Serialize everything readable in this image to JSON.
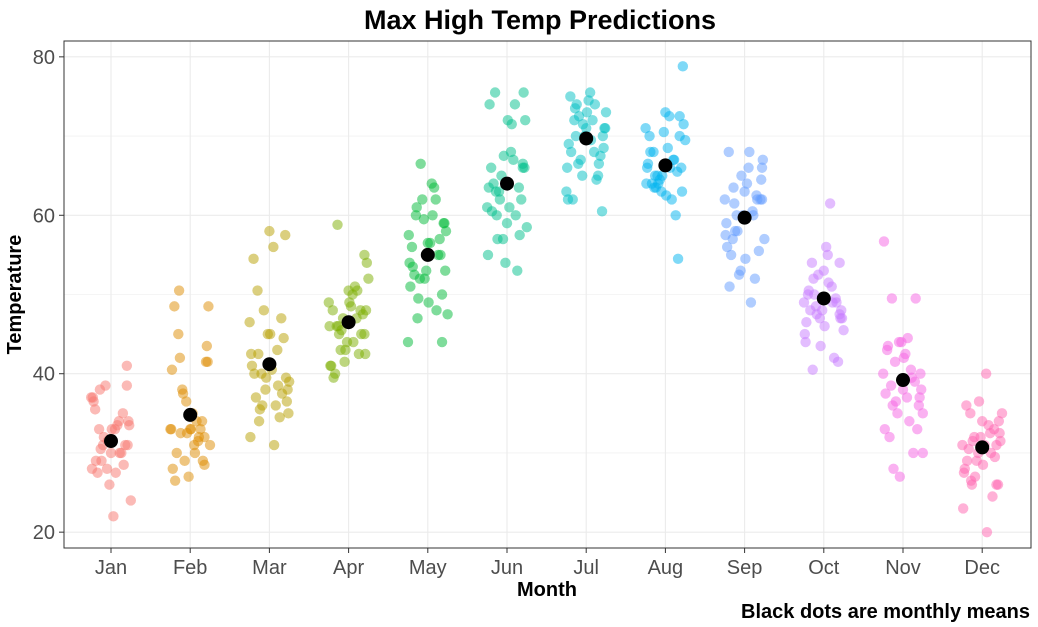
{
  "chart_data": {
    "type": "scatter",
    "title": "Max High Temp Predictions",
    "xlabel": "Month",
    "ylabel": "Temperature",
    "caption": "Black dots are monthly means",
    "categories": [
      "Jan",
      "Feb",
      "Mar",
      "Apr",
      "May",
      "Jun",
      "Jul",
      "Aug",
      "Sep",
      "Oct",
      "Nov",
      "Dec"
    ],
    "ylim": [
      18,
      82
    ],
    "yticks": [
      20,
      40,
      60,
      80
    ],
    "grid": true,
    "mean_color": "#000000",
    "point_opacity": 0.5,
    "series": [
      {
        "category": "Jan",
        "color": "#F8766D",
        "mean": 31.5,
        "offsets": [
          -0.25,
          -0.2,
          -0.15,
          -0.1,
          -0.05,
          0,
          0.05,
          0.1,
          0.15,
          0.2,
          0.25,
          -0.22,
          -0.17,
          -0.12,
          -0.07,
          -0.02,
          0.03,
          0.08,
          0.13,
          0.18,
          0.23,
          -0.24,
          -0.14,
          -0.04,
          0.06,
          0.16,
          0.22,
          -0.19,
          -0.09,
          0.01,
          0.11,
          0.21,
          -0.23,
          -0.13,
          0.2
        ],
        "values": [
          37,
          35.5,
          33,
          31,
          28,
          30,
          33,
          34,
          35,
          41,
          24,
          36.5,
          27.5,
          29,
          38.5,
          26,
          22,
          33.5,
          30,
          31,
          33.5,
          28,
          38,
          31.5,
          27.5,
          28.5,
          34,
          29,
          32,
          33,
          30,
          31,
          37,
          30.5,
          38.5
        ]
      },
      {
        "category": "Feb",
        "color": "#DE8C00",
        "mean": 34.8,
        "offsets": [
          -0.25,
          -0.2,
          -0.15,
          -0.1,
          -0.05,
          0,
          0.05,
          0.1,
          0.15,
          0.2,
          0.25,
          -0.22,
          -0.17,
          -0.12,
          -0.07,
          -0.02,
          0.03,
          0.08,
          0.13,
          0.18,
          0.23,
          -0.24,
          -0.14,
          -0.04,
          0.06,
          0.16,
          0.22,
          -0.19,
          -0.09,
          0.01,
          0.11,
          0.21,
          -0.23,
          -0.13,
          0.18
        ],
        "values": [
          33,
          48.5,
          45,
          38,
          36.5,
          33,
          31,
          31.5,
          34,
          41.5,
          31,
          28,
          30,
          32.5,
          29,
          27,
          35,
          34,
          33,
          32,
          48.5,
          33,
          50.5,
          32.5,
          30,
          29,
          41.5,
          26.5,
          37.5,
          33,
          32,
          43.5,
          40.5,
          42,
          28.5
        ]
      },
      {
        "category": "Mar",
        "color": "#B79F00",
        "mean": 41.2,
        "offsets": [
          -0.25,
          -0.2,
          -0.15,
          -0.1,
          -0.05,
          0,
          0.05,
          0.1,
          0.15,
          0.2,
          0.25,
          -0.22,
          -0.17,
          -0.12,
          -0.07,
          -0.02,
          0.03,
          0.08,
          0.13,
          0.18,
          0.23,
          -0.24,
          -0.14,
          -0.04,
          0.06,
          0.16,
          0.22,
          -0.19,
          -0.09,
          0.01,
          0.11,
          0.21,
          -0.23,
          -0.13,
          0.24
        ],
        "values": [
          46.5,
          54.5,
          50.5,
          40,
          38,
          58,
          56,
          43,
          47,
          57.5,
          39,
          41,
          37,
          35.5,
          48,
          45,
          40.5,
          36,
          34.5,
          44.5,
          38,
          32,
          42.5,
          39.5,
          31,
          37.5,
          36.5,
          40,
          36,
          45,
          38.5,
          39.5,
          42.5,
          34,
          35
        ]
      },
      {
        "category": "Apr",
        "color": "#7CAE00",
        "mean": 46.5,
        "offsets": [
          -0.25,
          -0.2,
          -0.15,
          -0.1,
          -0.05,
          0,
          0.05,
          0.1,
          0.15,
          0.2,
          0.25,
          -0.22,
          -0.17,
          -0.12,
          -0.07,
          -0.02,
          0.03,
          0.08,
          0.13,
          0.18,
          0.23,
          -0.24,
          -0.14,
          -0.04,
          0.06,
          0.16,
          0.22,
          -0.19,
          -0.09,
          0.01,
          0.11,
          0.21,
          -0.23,
          -0.13,
          0.2
        ],
        "values": [
          49,
          48,
          46,
          43,
          41.5,
          50.5,
          50,
          47,
          48,
          55,
          52,
          41,
          40,
          45,
          47,
          44,
          48.5,
          51,
          42.5,
          47.5,
          54,
          46,
          58.8,
          43,
          44,
          45,
          48,
          39.5,
          45.5,
          49,
          50.5,
          42.5,
          41,
          46,
          45
        ]
      },
      {
        "category": "May",
        "color": "#00BA38",
        "mean": 55.0,
        "offsets": [
          -0.25,
          -0.2,
          -0.15,
          -0.1,
          -0.05,
          0,
          0.05,
          0.1,
          0.15,
          0.2,
          0.25,
          -0.22,
          -0.17,
          -0.12,
          -0.07,
          -0.02,
          0.03,
          0.08,
          0.13,
          0.18,
          0.23,
          -0.24,
          -0.14,
          -0.04,
          0.06,
          0.16,
          0.22,
          -0.19,
          -0.09,
          0.01,
          0.11,
          0.21,
          -0.23,
          -0.13,
          0.18
        ],
        "values": [
          44,
          56,
          60,
          52,
          59.5,
          56.5,
          64,
          62,
          57,
          59,
          47.5,
          51,
          52.5,
          49.5,
          62,
          53,
          56.5,
          63.5,
          55,
          44,
          58,
          57.5,
          61,
          52,
          60,
          55,
          53,
          53.5,
          66.5,
          49,
          48,
          59,
          54,
          47,
          50
        ]
      },
      {
        "category": "Jun",
        "color": "#00C08B",
        "mean": 64.0,
        "offsets": [
          -0.25,
          -0.2,
          -0.15,
          -0.1,
          -0.05,
          0,
          0.05,
          0.1,
          0.15,
          0.2,
          0.25,
          -0.22,
          -0.17,
          -0.12,
          -0.07,
          -0.02,
          0.03,
          0.08,
          0.13,
          0.18,
          0.23,
          -0.24,
          -0.14,
          -0.04,
          0.06,
          0.16,
          0.22,
          -0.19,
          -0.09,
          0.01,
          0.11,
          0.21,
          -0.23,
          -0.13,
          0.2
        ],
        "values": [
          61,
          66,
          75.5,
          63,
          57,
          59,
          68,
          74,
          63.5,
          66.5,
          58.5,
          74,
          64,
          57,
          65,
          54,
          61,
          67,
          53,
          62,
          72,
          55,
          63,
          67.5,
          71.5,
          57.5,
          66,
          60.5,
          62,
          72,
          60,
          75.5,
          63.5,
          60,
          66
        ]
      },
      {
        "category": "Jul",
        "color": "#00BFC4",
        "mean": 69.7,
        "offsets": [
          -0.25,
          -0.2,
          -0.15,
          -0.1,
          -0.05,
          0,
          0.05,
          0.1,
          0.15,
          0.2,
          0.25,
          -0.22,
          -0.17,
          -0.12,
          -0.07,
          -0.02,
          0.03,
          0.08,
          0.13,
          0.18,
          0.23,
          -0.24,
          -0.14,
          -0.04,
          0.06,
          0.16,
          0.22,
          -0.19,
          -0.09,
          0.01,
          0.11,
          0.21,
          -0.23,
          -0.13,
          0.24
        ],
        "values": [
          63,
          75,
          72,
          66.5,
          65,
          71,
          75.5,
          68,
          65,
          60.5,
          73,
          69,
          62,
          74,
          67,
          70,
          74.5,
          72,
          64.5,
          67.5,
          71,
          66,
          73.5,
          71.5,
          69.5,
          66.5,
          68.5,
          68,
          72.5,
          73,
          74,
          70,
          62,
          70,
          71
        ]
      },
      {
        "category": "Aug",
        "color": "#00B4F0",
        "mean": 66.3,
        "offsets": [
          -0.25,
          -0.2,
          -0.15,
          -0.1,
          -0.05,
          0,
          0.05,
          0.1,
          0.15,
          0.2,
          0.25,
          -0.22,
          -0.17,
          -0.12,
          -0.07,
          -0.02,
          0.03,
          0.08,
          0.13,
          0.18,
          0.23,
          -0.24,
          -0.14,
          -0.04,
          0.06,
          0.16,
          0.22,
          -0.19,
          -0.09,
          0.01,
          0.11,
          0.21,
          -0.23,
          -0.13,
          0.18
        ],
        "values": [
          71,
          70,
          68,
          65,
          63,
          73,
          72.5,
          67,
          65.5,
          66,
          69.5,
          66.5,
          64,
          63.5,
          64.5,
          70.5,
          68.5,
          62,
          60,
          72.5,
          71.5,
          64,
          63.5,
          65,
          66,
          54.5,
          78.8,
          68,
          64,
          62.5,
          67,
          63,
          66,
          65,
          70
        ]
      },
      {
        "category": "Sep",
        "color": "#619CFF",
        "mean": 59.7,
        "offsets": [
          -0.25,
          -0.2,
          -0.15,
          -0.1,
          -0.05,
          0,
          0.05,
          0.1,
          0.15,
          0.2,
          0.25,
          -0.22,
          -0.17,
          -0.12,
          -0.07,
          -0.02,
          0.03,
          0.08,
          0.13,
          0.18,
          0.23,
          -0.24,
          -0.14,
          -0.04,
          0.06,
          0.16,
          0.22,
          -0.19,
          -0.09,
          0.01,
          0.11,
          0.21,
          -0.23,
          -0.13,
          0.22
        ],
        "values": [
          62,
          68,
          57,
          60,
          53,
          63,
          66,
          60.5,
          62.5,
          62,
          57,
          56,
          55,
          58,
          52.5,
          60,
          64,
          49,
          52,
          55.5,
          67,
          57.5,
          63.5,
          65,
          68,
          62,
          66,
          51,
          58,
          54.5,
          60,
          64.5,
          59,
          61.5,
          62
        ]
      },
      {
        "category": "Oct",
        "color": "#C77CFF",
        "mean": 49.5,
        "offsets": [
          -0.25,
          -0.2,
          -0.15,
          -0.1,
          -0.05,
          0,
          0.05,
          0.1,
          0.15,
          0.2,
          0.25,
          -0.22,
          -0.17,
          -0.12,
          -0.07,
          -0.02,
          0.03,
          0.08,
          0.13,
          0.18,
          0.23,
          -0.24,
          -0.14,
          -0.04,
          0.06,
          0.16,
          0.22,
          -0.19,
          -0.09,
          0.01,
          0.11,
          0.21,
          -0.23,
          -0.13,
          0.2
        ],
        "values": [
          49,
          50,
          54,
          48.5,
          47,
          53,
          55,
          51,
          49.5,
          47.5,
          45.5,
          46.5,
          48,
          50,
          52.5,
          48,
          56,
          61.5,
          42,
          41.5,
          47,
          45,
          40.5,
          43.5,
          51.5,
          49,
          48,
          50.5,
          47.5,
          46,
          49,
          47,
          44,
          52,
          54
        ]
      },
      {
        "category": "Nov",
        "color": "#F564E3",
        "mean": 39.2,
        "offsets": [
          -0.25,
          -0.2,
          -0.15,
          -0.1,
          -0.05,
          0,
          0.05,
          0.1,
          0.15,
          0.2,
          0.25,
          -0.22,
          -0.17,
          -0.12,
          -0.07,
          -0.02,
          0.03,
          0.08,
          0.13,
          0.18,
          0.23,
          -0.24,
          -0.14,
          -0.04,
          0.06,
          0.16,
          0.22,
          -0.19,
          -0.09,
          0.01,
          0.11,
          0.21,
          -0.23,
          -0.13,
          0.25
        ],
        "values": [
          40,
          43,
          38.5,
          41.5,
          44,
          38,
          37,
          40.5,
          39,
          36,
          35,
          37.5,
          32,
          28,
          35,
          44,
          42.5,
          34,
          30,
          33,
          38,
          56.7,
          49.5,
          27,
          44.5,
          49.5,
          40,
          43.5,
          36.5,
          42,
          39.5,
          37,
          33,
          36,
          30
        ]
      },
      {
        "category": "Dec",
        "color": "#FF64B0",
        "mean": 30.7,
        "offsets": [
          -0.25,
          -0.2,
          -0.15,
          -0.1,
          -0.05,
          0,
          0.05,
          0.1,
          0.15,
          0.2,
          0.25,
          -0.22,
          -0.17,
          -0.12,
          -0.07,
          -0.02,
          0.03,
          0.08,
          0.13,
          0.18,
          0.23,
          -0.24,
          -0.14,
          -0.04,
          0.06,
          0.16,
          0.22,
          -0.19,
          -0.09,
          0.01,
          0.11,
          0.21,
          -0.23,
          -0.13,
          0.18
        ],
        "values": [
          31,
          36,
          35,
          32,
          30,
          34,
          40,
          32.5,
          33,
          26,
          35,
          28,
          30.5,
          31.5,
          29,
          32,
          31,
          33.5,
          24.5,
          26,
          31.5,
          23,
          26.5,
          36.5,
          20,
          29.5,
          32.5,
          29,
          27,
          28.5,
          30,
          34,
          27.5,
          26,
          31
        ]
      }
    ]
  }
}
